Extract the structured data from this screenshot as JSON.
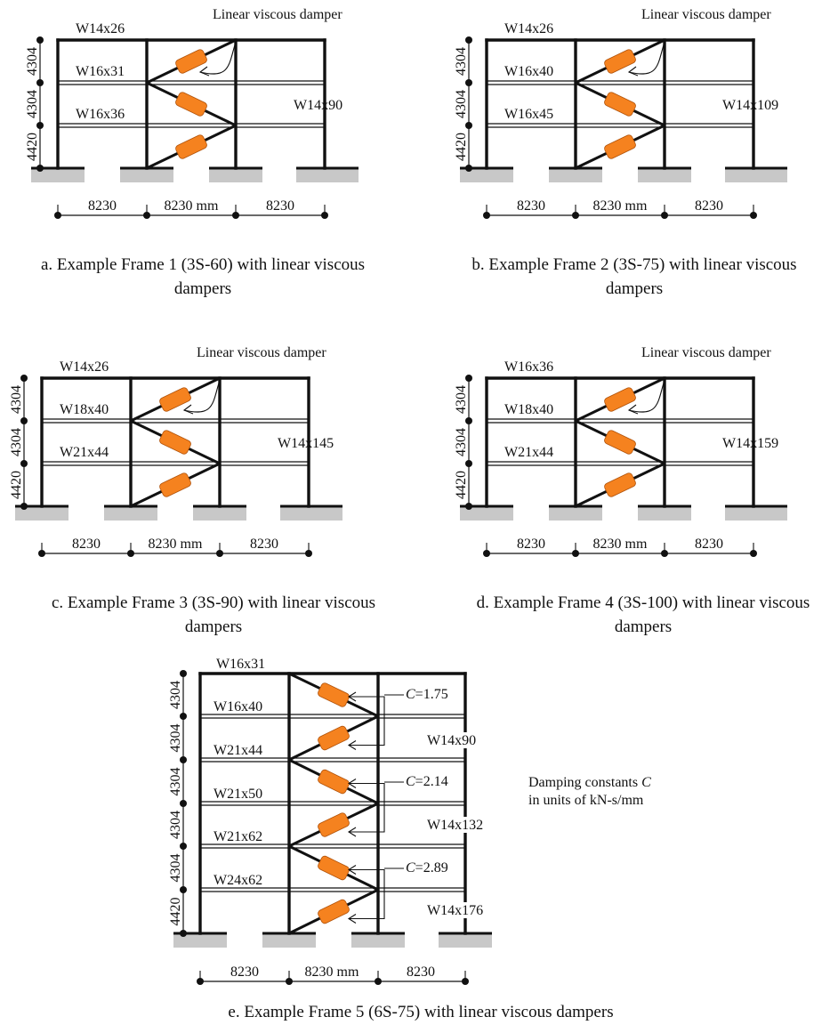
{
  "damper_label": "Linear viscous damper",
  "bay_dims": [
    "8230",
    "8230 mm",
    "8230"
  ],
  "colors": {
    "damper": "#f5821f",
    "ground": "#c8c8c8"
  },
  "frames": [
    {
      "id": "a",
      "caption": [
        "a. Example Frame 1 (3S-60) with linear viscous",
        "dampers"
      ],
      "beams": [
        "W14x26",
        "W16x31",
        "W16x36"
      ],
      "column": "W14x90",
      "story_heights": [
        "4304",
        "4304",
        "4420"
      ]
    },
    {
      "id": "b",
      "caption": [
        "b. Example Frame 2 (3S-75) with linear viscous",
        "dampers"
      ],
      "beams": [
        "W14x26",
        "W16x40",
        "W16x45"
      ],
      "column": "W14x109",
      "story_heights": [
        "4304",
        "4304",
        "4420"
      ]
    },
    {
      "id": "c",
      "caption": [
        "c. Example Frame 3 (3S-90) with linear viscous",
        "dampers"
      ],
      "beams": [
        "W14x26",
        "W18x40",
        "W21x44"
      ],
      "column": "W14x145",
      "story_heights": [
        "4304",
        "4304",
        "4420"
      ]
    },
    {
      "id": "d",
      "caption": [
        "d. Example Frame 4 (3S-100) with linear viscous",
        "dampers"
      ],
      "beams": [
        "W16x36",
        "W18x40",
        "W21x44"
      ],
      "column": "W14x159",
      "story_heights": [
        "4304",
        "4304",
        "4420"
      ]
    }
  ],
  "frame5": {
    "caption": "e. Example Frame 5 (6S-75) with linear viscous dampers",
    "beams": [
      "W16x31",
      "W16x40",
      "W21x44",
      "W21x50",
      "W21x62",
      "W24x62"
    ],
    "columns": [
      "W14x90",
      "W14x132",
      "W14x176"
    ],
    "story_heights": [
      "4304",
      "4304",
      "4304",
      "4304",
      "4304",
      "4420"
    ],
    "damping_c_prefix": "C",
    "damping_constants": [
      "=1.75",
      "=2.14",
      "=2.89"
    ],
    "note_line1_prefix": "Damping constants ",
    "note_line1_symbol": "C",
    "note_line2": "in units of kN-s/mm"
  }
}
